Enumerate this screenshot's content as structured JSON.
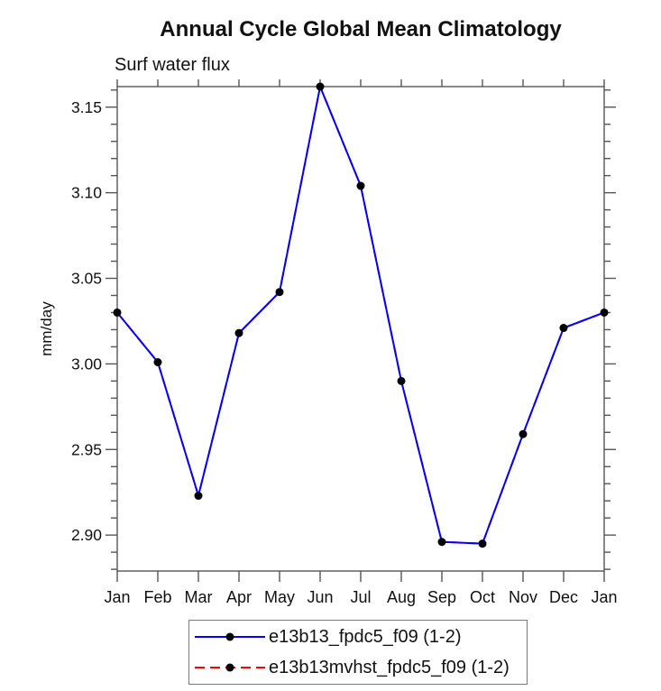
{
  "header": {
    "title": "Annual Cycle Global Mean Climatology",
    "subtitle": "Surf water flux"
  },
  "colors": {
    "series1": "#0000ff",
    "series2": "#ff0000",
    "marker": "#000000",
    "axis": "#555555",
    "text": "#111111",
    "legend_border": "#7a7a7a"
  },
  "chart_data": {
    "type": "line",
    "title": "Annual Cycle Global Mean Climatology",
    "subtitle": "Surf water flux",
    "xlabel": "",
    "ylabel": "mm/day",
    "categories": [
      "Jan",
      "Feb",
      "Mar",
      "Apr",
      "May",
      "Jun",
      "Jul",
      "Aug",
      "Sep",
      "Oct",
      "Nov",
      "Dec",
      "Jan"
    ],
    "series": [
      {
        "name": "e13b13_fpdc5_f09 (1-2)",
        "color": "#0000ff",
        "line_style": "solid",
        "marker": "black-circle",
        "values": [
          3.03,
          3.001,
          2.923,
          3.018,
          3.042,
          3.162,
          3.104,
          2.99,
          2.896,
          2.895,
          2.959,
          3.021,
          3.03
        ]
      },
      {
        "name": "e13b13mvhst_fpdc5_f09 (1-2)",
        "color": "#ff0000",
        "line_style": "dashed",
        "marker": "black-circle",
        "values": [
          3.03,
          3.001,
          2.923,
          3.018,
          3.042,
          3.162,
          3.104,
          2.99,
          2.896,
          2.895,
          2.959,
          3.021,
          3.03
        ],
        "note": "overlaps series 1 almost exactly; hidden beneath blue line"
      }
    ],
    "ylim": [
      2.879,
      3.162
    ],
    "yticks_major": [
      2.9,
      2.95,
      3.0,
      3.05,
      3.1,
      3.15
    ],
    "ytick_labels": [
      "2.90",
      "2.95",
      "3.00",
      "3.05",
      "3.10",
      "3.15"
    ],
    "yminor_step": 0.01,
    "yminor_range": [
      2.88,
      3.16
    ],
    "grid": false,
    "legend_position": "bottom-boxed"
  },
  "legend": {
    "entries": [
      {
        "label": "e13b13_fpdc5_f09 (1-2)",
        "style": "solid-blue-with-black-dot"
      },
      {
        "label": "e13b13mvhst_fpdc5_f09 (1-2)",
        "style": "dashed-red-with-black-dot"
      }
    ]
  }
}
